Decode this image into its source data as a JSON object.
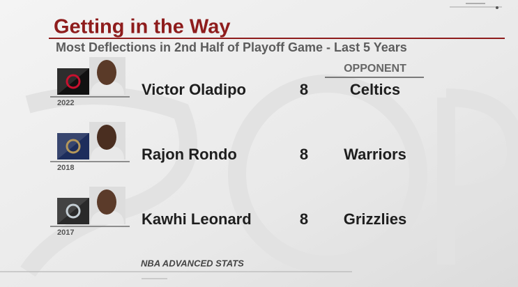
{
  "header": {
    "title": "Getting in the Way",
    "subtitle": "Most Deflections in 2nd Half of Playoff Game - Last 5 Years"
  },
  "table": {
    "opponent_header": "OPPONENT",
    "rows": [
      {
        "year": "2022",
        "player": "Victor Oladipo",
        "deflections": 8,
        "opponent": "Celtics"
      },
      {
        "year": "2018",
        "player": "Rajon Rondo",
        "deflections": 8,
        "opponent": "Warriors"
      },
      {
        "year": "2017",
        "player": "Kawhi Leonard",
        "deflections": 8,
        "opponent": "Grizzlies"
      }
    ]
  },
  "footer": {
    "source": "NBA ADVANCED STATS"
  }
}
